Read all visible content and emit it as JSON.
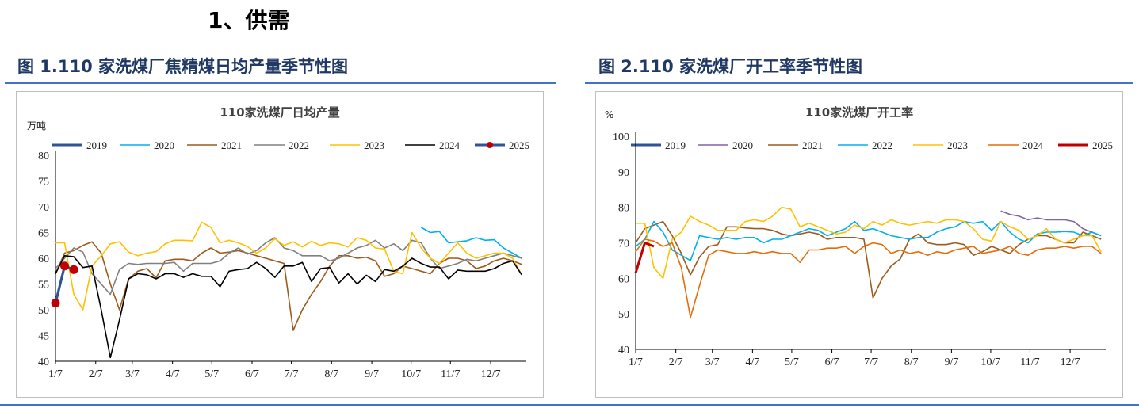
{
  "section_title": "1、供需",
  "figures": [
    {
      "label": "图 1.110 家洗煤厂焦精煤日均产量季节性图"
    },
    {
      "label": "图 2.110 家洗煤厂开工率季节性图"
    }
  ],
  "chart_data": [
    {
      "type": "line",
      "title": "110家洗煤厂日均产量",
      "yunit": "万吨",
      "ylim": [
        40,
        80
      ],
      "yticks": [
        40,
        45,
        50,
        55,
        60,
        65,
        70,
        75,
        80
      ],
      "xlabels": [
        "1/7",
        "2/7",
        "3/7",
        "4/7",
        "5/7",
        "6/7",
        "7/7",
        "8/7",
        "9/7",
        "10/7",
        "11/7",
        "12/7"
      ],
      "xlim": [
        0,
        51.5
      ],
      "legend_position": "top",
      "series": [
        {
          "name": "2019",
          "color": "#2f5597",
          "width": 3,
          "x": [
            0,
            1
          ],
          "y": [
            51.3,
            58.5
          ]
        },
        {
          "name": "2020",
          "color": "#00b0f0",
          "width": 1.6,
          "x": [
            40,
            41,
            42,
            43,
            44,
            45,
            46,
            47,
            48,
            49,
            50,
            51
          ],
          "y": [
            66,
            65,
            65.2,
            63,
            63.2,
            63.4,
            64,
            63.5,
            63.6,
            62,
            61,
            60
          ]
        },
        {
          "name": "2021",
          "color": "#9c5b1c",
          "width": 1.6,
          "x": [
            0,
            1,
            2,
            3,
            4,
            5,
            6,
            7,
            8,
            9,
            10,
            11,
            12,
            13,
            14,
            15,
            16,
            17,
            18,
            19,
            20,
            21,
            22,
            23,
            24,
            25,
            26,
            27,
            28,
            29,
            30,
            31,
            32,
            33,
            34,
            35,
            36,
            37,
            38,
            39,
            40,
            41,
            42,
            43,
            44,
            45,
            46,
            47,
            48,
            49,
            50,
            51
          ],
          "y": [
            57,
            61,
            61.5,
            62.5,
            63.2,
            61,
            55,
            50,
            56,
            57.5,
            58,
            56.2,
            59.5,
            59.8,
            59.8,
            59.5,
            61,
            62,
            61,
            61.2,
            61.5,
            61,
            60.5,
            60,
            59.5,
            59,
            46,
            50,
            53,
            55.5,
            58.5,
            60.5,
            60.5,
            60,
            60.2,
            59.5,
            56.5,
            57,
            58.5,
            58,
            57.5,
            57,
            59,
            60,
            60,
            59.5,
            58,
            58.5,
            59.5,
            60,
            59.5,
            58.8
          ]
        },
        {
          "name": "2022",
          "color": "#808080",
          "width": 1.6,
          "x": [
            0,
            1,
            2,
            3,
            4,
            5,
            6,
            7,
            8,
            9,
            10,
            11,
            12,
            13,
            14,
            15,
            16,
            17,
            18,
            19,
            20,
            21,
            22,
            23,
            24,
            25,
            26,
            27,
            28,
            29,
            30,
            31,
            32,
            33,
            34,
            35,
            36,
            37,
            38,
            39,
            40,
            41,
            42,
            43,
            44,
            45,
            46,
            47,
            48,
            49,
            50,
            51
          ],
          "y": [
            58,
            60,
            62,
            61.2,
            57,
            55,
            53,
            57.8,
            59,
            58.8,
            59,
            59,
            59,
            59.2,
            57.5,
            59,
            59,
            59,
            59.5,
            61,
            62,
            60.8,
            61.5,
            63,
            64,
            62,
            61.5,
            60.5,
            60.5,
            60.5,
            59.5,
            60,
            61,
            62,
            62.5,
            63.5,
            62,
            62.8,
            61.5,
            63.5,
            63,
            60,
            58,
            58.5,
            59,
            59.8,
            59.5,
            60,
            60.5,
            61,
            60.5,
            60
          ]
        },
        {
          "name": "2023",
          "color": "#ffc000",
          "width": 1.6,
          "x": [
            0,
            1,
            2,
            3,
            4,
            5,
            6,
            7,
            8,
            9,
            10,
            11,
            12,
            13,
            14,
            15,
            16,
            17,
            18,
            19,
            20,
            21,
            22,
            23,
            24,
            25,
            26,
            27,
            28,
            29,
            30,
            31,
            32,
            33,
            34,
            35,
            36,
            37,
            38,
            39,
            40,
            41,
            42,
            43,
            44,
            45,
            46,
            47,
            48,
            49,
            50,
            51
          ],
          "y": [
            63,
            63,
            53,
            50,
            58.5,
            60.5,
            62.8,
            63.2,
            61.2,
            60.5,
            61,
            61.3,
            62.8,
            63.5,
            63.5,
            63.4,
            67,
            66,
            63,
            63.5,
            63,
            62.3,
            61,
            62,
            63.8,
            62.5,
            63.2,
            62.2,
            63.3,
            62.5,
            63,
            62.8,
            62.2,
            64,
            63.5,
            62,
            61.8,
            57.5,
            57,
            65,
            62,
            60,
            59,
            61,
            63,
            61,
            60,
            60.5,
            61,
            61,
            60,
            56.8
          ]
        },
        {
          "name": "2024",
          "color": "#000000",
          "width": 1.6,
          "x": [
            0,
            1,
            2,
            3,
            4,
            5,
            6,
            7,
            8,
            9,
            10,
            11,
            12,
            13,
            14,
            15,
            16,
            17,
            18,
            19,
            20,
            21,
            22,
            23,
            24,
            25,
            26,
            27,
            28,
            29,
            30,
            31,
            32,
            33,
            34,
            35,
            36,
            37,
            38,
            39,
            40,
            41,
            42,
            43,
            44,
            45,
            46,
            47,
            48,
            49,
            50,
            51
          ],
          "y": [
            57,
            60.5,
            60.3,
            58.2,
            58.5,
            50,
            40.7,
            48,
            56,
            57,
            56.8,
            56,
            57,
            57,
            56.3,
            57,
            56.5,
            56.5,
            54.5,
            57.5,
            57.8,
            58,
            59.2,
            58,
            56.3,
            58.5,
            58.5,
            59.2,
            55.5,
            58,
            58.2,
            55.2,
            57,
            55,
            56.7,
            55.5,
            57.8,
            57.5,
            58.5,
            60,
            59,
            58.3,
            58.3,
            56,
            57.7,
            57.5,
            57.5,
            57.5,
            58,
            59,
            59.5,
            56.8
          ]
        },
        {
          "name": "2025",
          "color": "#2f5597",
          "width": 3,
          "marker": "#c00000",
          "x": [
            0,
            1,
            2
          ],
          "y": [
            51.3,
            58.5,
            57.8
          ]
        }
      ]
    },
    {
      "type": "line",
      "title": "110家洗煤厂开工率",
      "yunit": "%",
      "ylim": [
        40,
        100
      ],
      "yticks": [
        40,
        50,
        60,
        70,
        80,
        90,
        100
      ],
      "xlabels": [
        "1/7",
        "2/7",
        "3/7",
        "4/7",
        "5/7",
        "6/7",
        "7/7",
        "8/7",
        "9/7",
        "10/7",
        "11/7",
        "12/7"
      ],
      "xlim": [
        0,
        51.5
      ],
      "legend_position": "top",
      "series": [
        {
          "name": "2019",
          "color": "#2f5597",
          "width": 3,
          "x": [],
          "y": []
        },
        {
          "name": "2020",
          "color": "#8064a2",
          "width": 1.6,
          "x": [
            40,
            41,
            42,
            43,
            44,
            45,
            46,
            47,
            48,
            49,
            50,
            51
          ],
          "y": [
            79,
            78,
            77.5,
            76.5,
            77,
            76.5,
            76.5,
            76.5,
            76,
            74,
            73,
            72
          ]
        },
        {
          "name": "2021",
          "color": "#9c5b1c",
          "width": 1.6,
          "x": [
            0,
            1,
            2,
            3,
            4,
            5,
            6,
            7,
            8,
            9,
            10,
            11,
            12,
            13,
            14,
            15,
            16,
            17,
            18,
            19,
            20,
            21,
            22,
            23,
            24,
            25,
            26,
            27,
            28,
            29,
            30,
            31,
            32,
            33,
            34,
            35,
            36,
            37,
            38,
            39,
            40,
            41,
            42,
            43,
            44,
            45,
            46,
            47,
            48,
            49,
            50,
            51
          ],
          "y": [
            70,
            74,
            75,
            76,
            72,
            67,
            61,
            66,
            69,
            69.5,
            74.5,
            74.5,
            74.2,
            74,
            74,
            73.5,
            72.5,
            72,
            72.5,
            73,
            72.5,
            71,
            71.5,
            71.5,
            71.5,
            71,
            54.5,
            60,
            63.5,
            65.5,
            71,
            72.5,
            70,
            69.5,
            69.5,
            70,
            69.5,
            66.5,
            67.5,
            69,
            68,
            67,
            69.5,
            71,
            72,
            72,
            71,
            70,
            70,
            73,
            72,
            71
          ]
        },
        {
          "name": "2022",
          "color": "#00b0f0",
          "width": 1.6,
          "x": [
            0,
            1,
            2,
            3,
            4,
            5,
            6,
            7,
            8,
            9,
            10,
            11,
            12,
            13,
            14,
            15,
            16,
            17,
            18,
            19,
            20,
            21,
            22,
            23,
            24,
            25,
            26,
            27,
            28,
            29,
            30,
            31,
            32,
            33,
            34,
            35,
            36,
            37,
            38,
            39,
            40,
            41,
            42,
            43,
            44,
            45,
            46,
            47,
            48,
            49,
            50,
            51
          ],
          "y": [
            69,
            71,
            76,
            73,
            68,
            66.5,
            65,
            72,
            71.5,
            71,
            71.5,
            71,
            71.5,
            71.5,
            70,
            71,
            71,
            72,
            73,
            74,
            73.5,
            72,
            73,
            74,
            76,
            73.5,
            74,
            73,
            72,
            71.5,
            71,
            71.5,
            71.5,
            73,
            74,
            74.5,
            76,
            75.5,
            76,
            73.5,
            76,
            73,
            71,
            70,
            72.5,
            73,
            73,
            73.2,
            73,
            72,
            73,
            72
          ]
        },
        {
          "name": "2023",
          "color": "#ffc000",
          "width": 1.6,
          "x": [
            0,
            1,
            2,
            3,
            4,
            5,
            6,
            7,
            8,
            9,
            10,
            11,
            12,
            13,
            14,
            15,
            16,
            17,
            18,
            19,
            20,
            21,
            22,
            23,
            24,
            25,
            26,
            27,
            28,
            29,
            30,
            31,
            32,
            33,
            34,
            35,
            36,
            37,
            38,
            39,
            40,
            41,
            42,
            43,
            44,
            45,
            46,
            47,
            48,
            49,
            50,
            51
          ],
          "y": [
            75.5,
            75.5,
            63,
            60,
            71,
            73,
            77.5,
            76,
            75,
            73.5,
            73.5,
            73.5,
            76,
            76.5,
            76,
            77.5,
            80,
            79.5,
            74.5,
            75.5,
            74.5,
            73.5,
            72.5,
            73,
            75,
            74,
            76,
            75,
            76.5,
            75.5,
            75,
            75.5,
            76,
            75.5,
            76.5,
            76.5,
            76,
            74,
            71,
            70.5,
            76,
            74.5,
            73.5,
            71,
            72,
            74,
            71,
            70,
            71,
            72,
            72,
            67.5
          ]
        },
        {
          "name": "2024",
          "color": "#e46c0a",
          "width": 1.6,
          "x": [
            0,
            1,
            2,
            3,
            4,
            5,
            6,
            7,
            8,
            9,
            10,
            11,
            12,
            13,
            14,
            15,
            16,
            17,
            18,
            19,
            20,
            21,
            22,
            23,
            24,
            25,
            26,
            27,
            28,
            29,
            30,
            31,
            32,
            33,
            34,
            35,
            36,
            37,
            38,
            39,
            40,
            41,
            42,
            43,
            44,
            45,
            46,
            47,
            48,
            49,
            50,
            51
          ],
          "y": [
            67.5,
            71,
            70.5,
            69,
            70,
            63,
            49,
            58,
            66.5,
            68,
            67.5,
            67,
            67,
            67.5,
            67,
            67.5,
            67,
            67,
            64.5,
            68,
            68,
            68.5,
            68.5,
            69,
            67,
            69,
            70,
            69.5,
            67,
            68,
            67,
            67.5,
            66.5,
            67.5,
            67,
            68,
            68.5,
            69,
            67,
            67.5,
            68,
            69,
            67,
            66.5,
            68,
            68.5,
            68.5,
            69,
            68.5,
            69,
            69,
            67
          ]
        },
        {
          "name": "2025",
          "color": "#c00000",
          "width": 3,
          "x": [
            0,
            1,
            2
          ],
          "y": [
            61.5,
            70,
            69
          ]
        }
      ]
    }
  ]
}
